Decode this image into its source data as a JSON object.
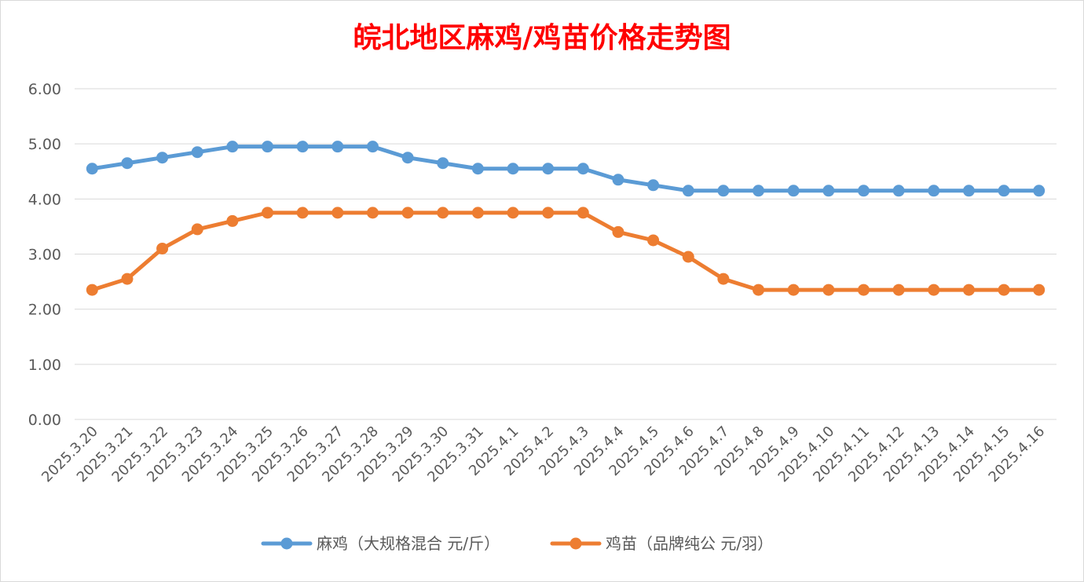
{
  "chart_data": {
    "type": "line",
    "title": "皖北地区麻鸡/鸡苗价格走势图",
    "title_color": "#FF0000",
    "categories": [
      "2025.3.20",
      "2025.3.21",
      "2025.3.22",
      "2025.3.23",
      "2025.3.24",
      "2025.3.25",
      "2025.3.26",
      "2025.3.27",
      "2025.3.28",
      "2025.3.29",
      "2025.3.30",
      "2025.3.31",
      "2025.4.1",
      "2025.4.2",
      "2025.4.3",
      "2025.4.4",
      "2025.4.5",
      "2025.4.6",
      "2025.4.7",
      "2025.4.8",
      "2025.4.9",
      "2025.4.10",
      "2025.4.11",
      "2025.4.12",
      "2025.4.13",
      "2025.4.14",
      "2025.4.15",
      "2025.4.16"
    ],
    "series": [
      {
        "name": "麻鸡（大规格混合 元/斤）",
        "color": "#5B9BD5",
        "values": [
          4.55,
          4.65,
          4.75,
          4.85,
          4.95,
          4.95,
          4.95,
          4.95,
          4.95,
          4.75,
          4.65,
          4.55,
          4.55,
          4.55,
          4.55,
          4.35,
          4.25,
          4.15,
          4.15,
          4.15,
          4.15,
          4.15,
          4.15,
          4.15,
          4.15,
          4.15,
          4.15,
          4.15
        ]
      },
      {
        "name": "鸡苗（品牌纯公 元/羽）",
        "color": "#ED7D31",
        "values": [
          2.35,
          2.55,
          3.1,
          3.45,
          3.6,
          3.75,
          3.75,
          3.75,
          3.75,
          3.75,
          3.75,
          3.75,
          3.75,
          3.75,
          3.75,
          3.4,
          3.25,
          2.95,
          2.55,
          2.35,
          2.35,
          2.35,
          2.35,
          2.35,
          2.35,
          2.35,
          2.35,
          2.35
        ]
      }
    ],
    "ylim": [
      0,
      6
    ],
    "yticks": [
      "0.00",
      "1.00",
      "2.00",
      "3.00",
      "4.00",
      "5.00",
      "6.00"
    ],
    "grid": true,
    "legend_position": "bottom"
  }
}
